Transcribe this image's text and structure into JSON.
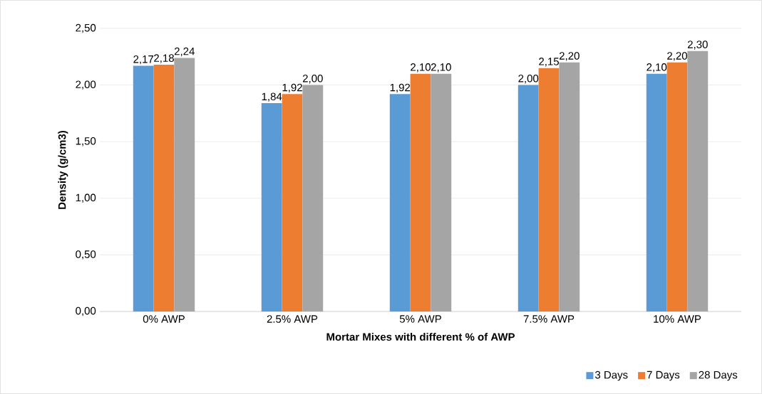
{
  "chart_data": {
    "type": "bar",
    "xlabel": "Mortar Mixes with different % of AWP",
    "ylabel": "Density (g/cm3)",
    "categories": [
      "0% AWP",
      "2.5% AWP",
      "5% AWP",
      "7.5% AWP",
      "10% AWP"
    ],
    "series": [
      {
        "name": "3 Days",
        "color": "#5b9bd5",
        "values": [
          2.17,
          1.84,
          1.92,
          2.0,
          2.1
        ],
        "value_labels": [
          "2,17",
          "1,84",
          "1,92",
          "2,00",
          "2,10"
        ]
      },
      {
        "name": "7 Days",
        "color": "#ed7d31",
        "values": [
          2.18,
          1.92,
          2.1,
          2.15,
          2.2
        ],
        "value_labels": [
          "2,18",
          "1,92",
          "2,10",
          "2,15",
          "2,20"
        ]
      },
      {
        "name": "28 Days",
        "color": "#a5a5a5",
        "values": [
          2.24,
          2.0,
          2.1,
          2.2,
          2.3
        ],
        "value_labels": [
          "2,24",
          "2,00",
          "2,10",
          "2,20",
          "2,30"
        ]
      }
    ],
    "ylim": [
      0,
      2.5
    ],
    "yticks": [
      {
        "value": 0,
        "label": "0,00"
      },
      {
        "value": 0.5,
        "label": "0,50"
      },
      {
        "value": 1,
        "label": "1,00"
      },
      {
        "value": 1.5,
        "label": "1,50"
      },
      {
        "value": 2,
        "label": "2,00"
      },
      {
        "value": 2.5,
        "label": "2,50"
      }
    ],
    "grid": "y",
    "legend": "bottom right"
  }
}
